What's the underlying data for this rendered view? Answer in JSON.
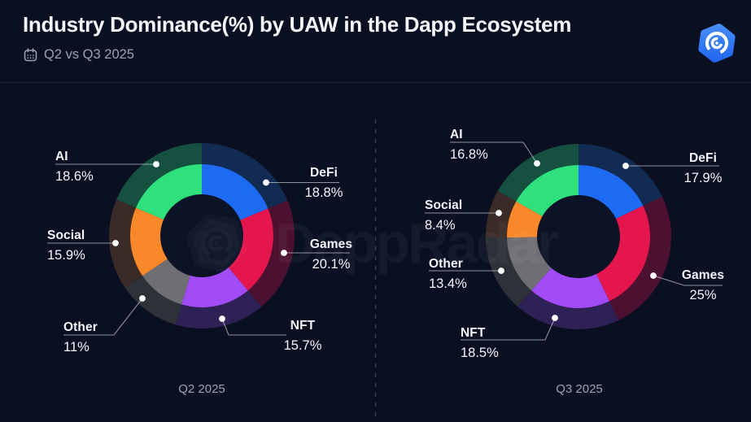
{
  "header": {
    "title": "Industry Dominance(%) by UAW in the Dapp Ecosystem",
    "period": "Q2 vs Q3 2025",
    "calendar_icon": "calendar-icon",
    "logo": "dappradar-logo"
  },
  "watermark": {
    "text": "DappRadar"
  },
  "colors": {
    "background": "#0a0f22",
    "defi": "#1e6bf3",
    "games": "#e5164e",
    "nft": "#a04bf5",
    "other": "#6e6e73",
    "social": "#f9882a",
    "ai": "#2ee17c",
    "defi_dim": "#112b52",
    "games_dim": "#4c1130",
    "nft_dim": "#2e2156",
    "other_dim": "#2d3138",
    "social_dim": "#3a2a28",
    "ai_dim": "#155040",
    "connector": "rgba(255,255,255,0.55)",
    "divider": "rgba(255,255,255,0.22)"
  },
  "chart_data": [
    {
      "type": "pie",
      "title": "Q2 2025",
      "unit": "%",
      "start_angle_deg": 0,
      "clockwise": true,
      "segments": [
        {
          "label": "DeFi",
          "value": 18.8,
          "display": "18.8%",
          "color_key": "defi"
        },
        {
          "label": "Games",
          "value": 20.1,
          "display": "20.1%",
          "color_key": "games"
        },
        {
          "label": "NFT",
          "value": 15.7,
          "display": "15.7%",
          "color_key": "nft"
        },
        {
          "label": "Other",
          "value": 11,
          "display": "11%",
          "color_key": "other"
        },
        {
          "label": "Social",
          "value": 15.9,
          "display": "15.9%",
          "color_key": "social"
        },
        {
          "label": "AI",
          "value": 18.6,
          "display": "18.6%",
          "color_key": "ai"
        }
      ]
    },
    {
      "type": "pie",
      "title": "Q3 2025",
      "unit": "%",
      "start_angle_deg": 0,
      "clockwise": true,
      "segments": [
        {
          "label": "DeFi",
          "value": 17.9,
          "display": "17.9%",
          "color_key": "defi"
        },
        {
          "label": "Games",
          "value": 25,
          "display": "25%",
          "color_key": "games"
        },
        {
          "label": "NFT",
          "value": 18.5,
          "display": "18.5%",
          "color_key": "nft"
        },
        {
          "label": "Other",
          "value": 13.4,
          "display": "13.4%",
          "color_key": "other"
        },
        {
          "label": "Social",
          "value": 8.4,
          "display": "8.4%",
          "color_key": "social"
        },
        {
          "label": "AI",
          "value": 16.8,
          "display": "16.8%",
          "color_key": "ai"
        }
      ]
    }
  ]
}
